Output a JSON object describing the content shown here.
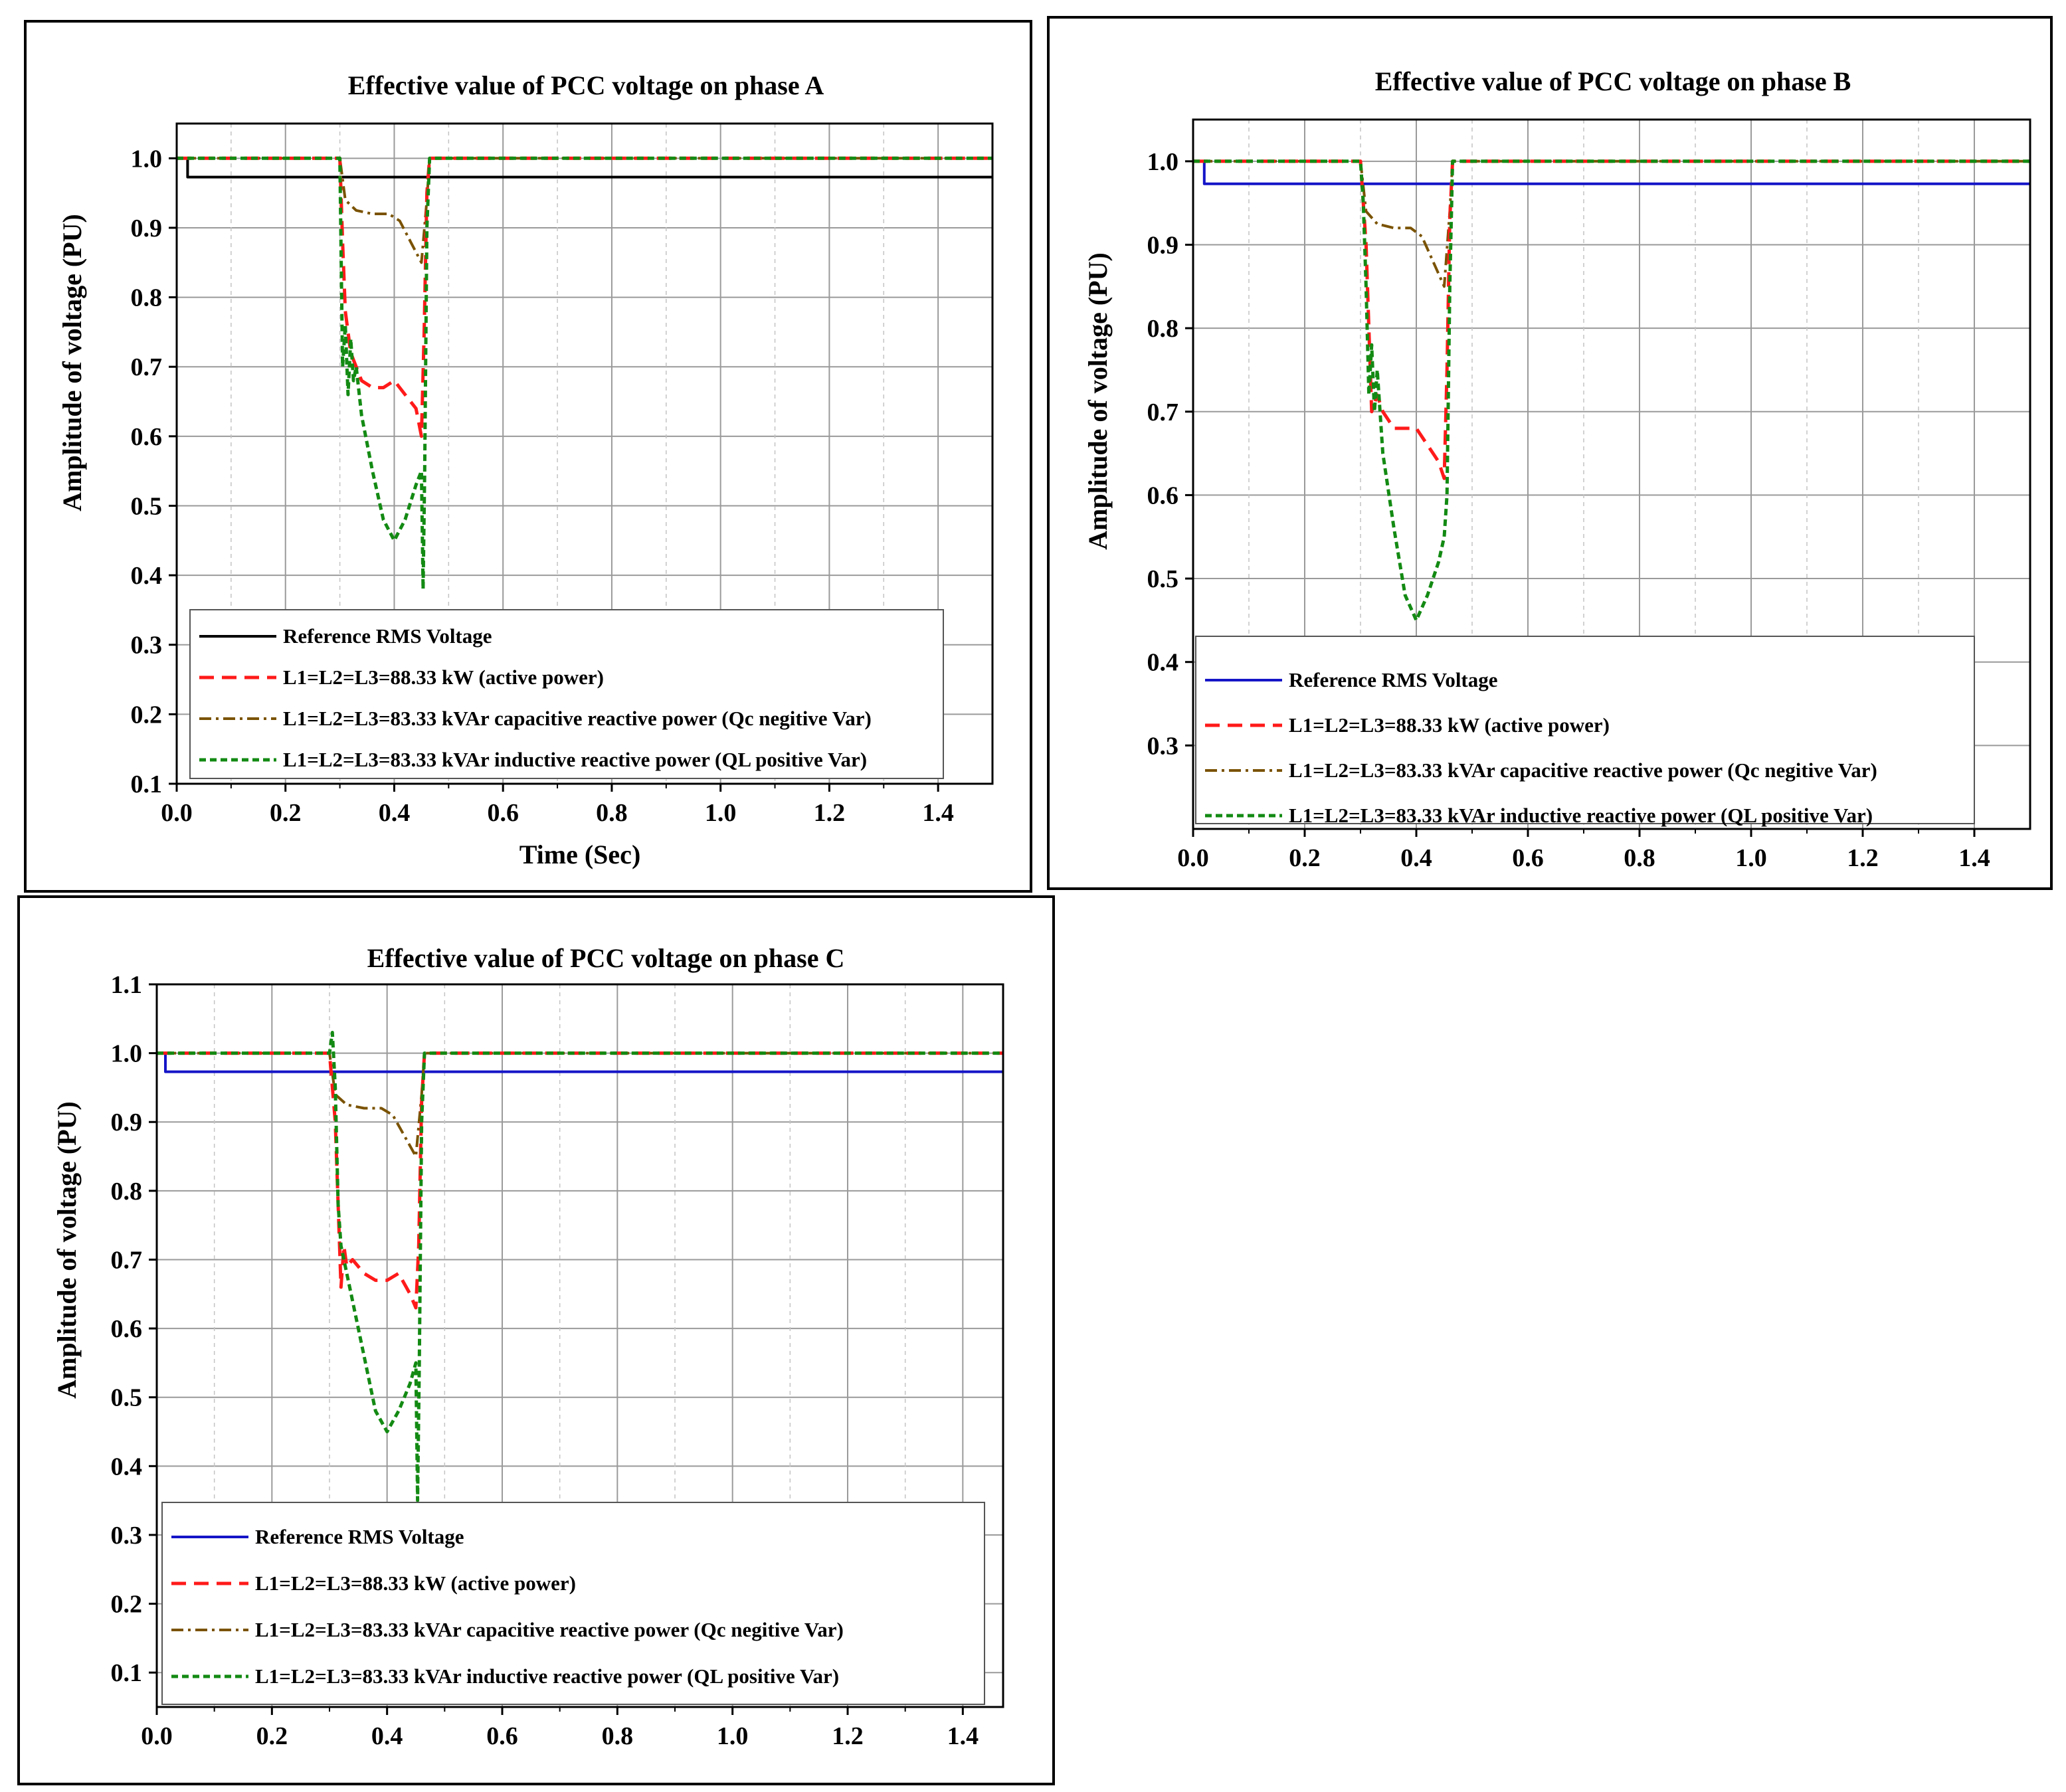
{
  "colors": {
    "grid": "#9a9a9a",
    "axis": "#000000",
    "active": "#ff1a1a",
    "capacitive": "#7a5200",
    "inductive": "#138a13",
    "reference_a": "#000000",
    "reference_bc": "#1515c8"
  },
  "chart_data": [
    {
      "type": "line",
      "title": "Effective value of PCC voltage on phase A",
      "xlabel": "Time (Sec)",
      "ylabel": "Amplitude of voltage (PU)",
      "xlim": [
        0,
        1.5
      ],
      "ylim": [
        0.1,
        1.05
      ],
      "xticks": [
        "0.0",
        "0.2",
        "0.4",
        "0.6",
        "0.8",
        "1.0",
        "1.2",
        "1.4"
      ],
      "yticks": [
        "0.1",
        "0.2",
        "0.3",
        "0.4",
        "0.5",
        "0.6",
        "0.7",
        "0.8",
        "0.9",
        "1.0"
      ],
      "legend": [
        {
          "key": "reference",
          "label": "Reference RMS Voltage"
        },
        {
          "key": "active",
          "label": "L1=L2=L3=88.33 kW (active power)"
        },
        {
          "key": "capacitive",
          "label": "L1=L2=L3=83.33 kVAr capacitive reactive power (Qc negitive Var)"
        },
        {
          "key": "inductive",
          "label": "L1=L2=L3=83.33 kVAr inductive reactive power (QL positive Var)"
        }
      ],
      "series": [
        {
          "key": "reference",
          "x": [
            0,
            0.02,
            0.02,
            1.5
          ],
          "y": [
            1.0,
            1.0,
            0.973,
            0.973
          ]
        },
        {
          "key": "active",
          "x": [
            0,
            0.3,
            0.305,
            0.31,
            0.32,
            0.34,
            0.36,
            0.38,
            0.4,
            0.42,
            0.44,
            0.45,
            0.455,
            0.46,
            0.465,
            1.5
          ],
          "y": [
            1.0,
            1.0,
            0.88,
            0.78,
            0.72,
            0.68,
            0.67,
            0.67,
            0.68,
            0.66,
            0.64,
            0.6,
            0.75,
            0.95,
            1.0,
            1.0
          ]
        },
        {
          "key": "capacitive",
          "x": [
            0,
            0.3,
            0.31,
            0.33,
            0.36,
            0.39,
            0.41,
            0.43,
            0.45,
            0.46,
            0.465,
            1.5
          ],
          "y": [
            1.0,
            1.0,
            0.94,
            0.925,
            0.92,
            0.92,
            0.91,
            0.88,
            0.85,
            0.94,
            1.0,
            1.0
          ]
        },
        {
          "key": "inductive",
          "x": [
            0,
            0.3,
            0.305,
            0.31,
            0.315,
            0.32,
            0.325,
            0.33,
            0.34,
            0.36,
            0.38,
            0.4,
            0.42,
            0.44,
            0.45,
            0.453,
            0.456,
            0.46,
            0.465,
            1.5
          ],
          "y": [
            1.0,
            1.0,
            0.7,
            0.76,
            0.66,
            0.74,
            0.68,
            0.7,
            0.63,
            0.55,
            0.48,
            0.45,
            0.48,
            0.53,
            0.55,
            0.38,
            0.55,
            0.9,
            1.0,
            1.0
          ]
        }
      ]
    },
    {
      "type": "line",
      "title": "Effective value of PCC voltage on phase B",
      "xlabel": "",
      "ylabel": "Amplitude of voltage (PU)",
      "xlim": [
        0,
        1.5
      ],
      "ylim": [
        0.2,
        1.05
      ],
      "xticks": [
        "0.0",
        "0.2",
        "0.4",
        "0.6",
        "0.8",
        "1.0",
        "1.2",
        "1.4"
      ],
      "yticks": [
        "0.3",
        "0.4",
        "0.5",
        "0.6",
        "0.7",
        "0.8",
        "0.9",
        "1.0"
      ],
      "legend": [
        {
          "key": "reference",
          "label": "Reference RMS Voltage"
        },
        {
          "key": "active",
          "label": "L1=L2=L3=88.33 kW (active power)"
        },
        {
          "key": "capacitive",
          "label": "L1=L2=L3=83.33 kVAr capacitive reactive power (Qc negitive Var)"
        },
        {
          "key": "inductive",
          "label": "L1=L2=L3=83.33 kVAr inductive reactive power (QL positive Var)"
        }
      ],
      "series": [
        {
          "key": "reference",
          "x": [
            0,
            0.02,
            0.02,
            1.5
          ],
          "y": [
            1.0,
            1.0,
            0.973,
            0.973
          ]
        },
        {
          "key": "active",
          "x": [
            0,
            0.3,
            0.31,
            0.315,
            0.32,
            0.33,
            0.34,
            0.36,
            0.38,
            0.4,
            0.42,
            0.44,
            0.45,
            0.455,
            0.46,
            0.465,
            1.5
          ],
          "y": [
            1.0,
            1.0,
            0.9,
            0.8,
            0.7,
            0.72,
            0.7,
            0.68,
            0.68,
            0.68,
            0.66,
            0.64,
            0.62,
            0.75,
            0.93,
            1.0,
            1.0
          ]
        },
        {
          "key": "capacitive",
          "x": [
            0,
            0.3,
            0.31,
            0.33,
            0.36,
            0.39,
            0.41,
            0.43,
            0.45,
            0.46,
            0.465,
            1.5
          ],
          "y": [
            1.0,
            1.0,
            0.94,
            0.925,
            0.92,
            0.92,
            0.91,
            0.88,
            0.85,
            0.94,
            1.0,
            1.0
          ]
        },
        {
          "key": "inductive",
          "x": [
            0,
            0.3,
            0.305,
            0.31,
            0.315,
            0.32,
            0.325,
            0.33,
            0.34,
            0.36,
            0.38,
            0.4,
            0.42,
            0.44,
            0.45,
            0.455,
            0.46,
            0.465,
            1.5
          ],
          "y": [
            1.0,
            1.0,
            0.95,
            0.85,
            0.72,
            0.78,
            0.7,
            0.75,
            0.65,
            0.56,
            0.48,
            0.45,
            0.48,
            0.52,
            0.55,
            0.6,
            0.85,
            1.0,
            1.0
          ]
        }
      ]
    },
    {
      "type": "line",
      "title": "Effective value of PCC voltage on phase C",
      "xlabel": "",
      "ylabel": "Amplitude of voltage (PU)",
      "xlim": [
        0,
        1.47
      ],
      "ylim": [
        0.05,
        1.1
      ],
      "xticks": [
        "0.0",
        "0.2",
        "0.4",
        "0.6",
        "0.8",
        "1.0",
        "1.2",
        "1.4"
      ],
      "yticks": [
        "0.1",
        "0.2",
        "0.3",
        "0.4",
        "0.5",
        "0.6",
        "0.7",
        "0.8",
        "0.9",
        "1.0",
        "1.1"
      ],
      "legend": [
        {
          "key": "reference",
          "label": "Reference RMS Voltage"
        },
        {
          "key": "active",
          "label": "L1=L2=L3=88.33 kW (active power)"
        },
        {
          "key": "capacitive",
          "label": "L1=L2=L3=83.33 kVAr capacitive reactive power (Qc negitive Var)"
        },
        {
          "key": "inductive",
          "label": "L1=L2=L3=83.33 kVAr inductive reactive power (QL positive Var)"
        }
      ],
      "series": [
        {
          "key": "reference",
          "x": [
            0,
            0.015,
            0.015,
            1.47
          ],
          "y": [
            1.0,
            1.0,
            0.973,
            0.973
          ]
        },
        {
          "key": "active",
          "x": [
            0,
            0.3,
            0.31,
            0.315,
            0.32,
            0.325,
            0.33,
            0.34,
            0.36,
            0.38,
            0.4,
            0.42,
            0.44,
            0.45,
            0.455,
            0.46,
            0.465,
            1.47
          ],
          "y": [
            1.0,
            1.0,
            0.9,
            0.78,
            0.66,
            0.72,
            0.69,
            0.7,
            0.68,
            0.67,
            0.67,
            0.68,
            0.65,
            0.63,
            0.72,
            0.93,
            1.0,
            1.0
          ]
        },
        {
          "key": "capacitive",
          "x": [
            0,
            0.3,
            0.31,
            0.33,
            0.36,
            0.39,
            0.41,
            0.43,
            0.45,
            0.46,
            0.465,
            1.47
          ],
          "y": [
            1.0,
            1.0,
            0.94,
            0.925,
            0.92,
            0.92,
            0.91,
            0.88,
            0.85,
            0.94,
            1.0,
            1.0
          ]
        },
        {
          "key": "inductive",
          "x": [
            0,
            0.3,
            0.305,
            0.31,
            0.315,
            0.32,
            0.33,
            0.34,
            0.36,
            0.38,
            0.4,
            0.42,
            0.44,
            0.45,
            0.453,
            0.456,
            0.46,
            0.465,
            1.47
          ],
          "y": [
            1.0,
            1.0,
            1.03,
            0.95,
            0.78,
            0.72,
            0.68,
            0.64,
            0.56,
            0.48,
            0.45,
            0.48,
            0.52,
            0.55,
            0.35,
            0.55,
            0.9,
            1.0,
            1.0
          ]
        }
      ]
    }
  ]
}
